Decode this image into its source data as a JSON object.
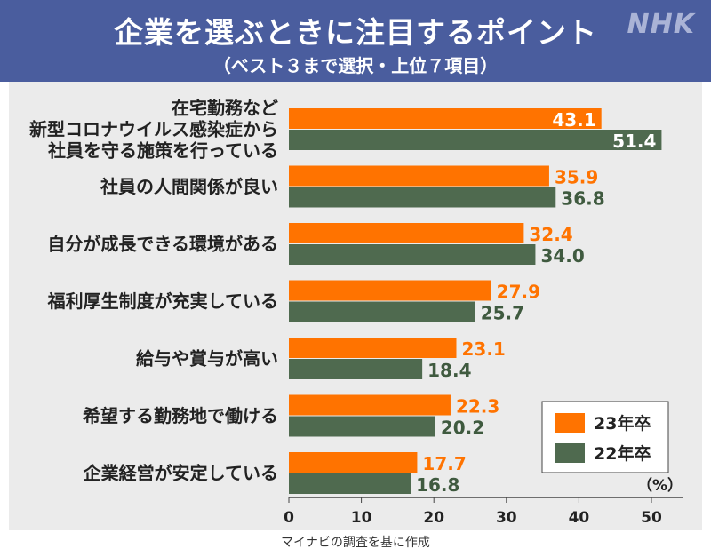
{
  "header": {
    "title": "企業を選ぶときに注目するポイント",
    "subtitle": "（ベスト３まで選択・上位７項目）",
    "logo": "NHK"
  },
  "source": "マイナビの調査を基に作成",
  "colors": {
    "header_bg": "#4a5d9e",
    "series_23": "#ff7300",
    "series_22": "#4f6a4f"
  },
  "chart_data": {
    "type": "bar",
    "orientation": "horizontal",
    "categories": [
      [
        "在宅勤務など",
        "新型コロナウイルス感染症から",
        "社員を守る施策を行っている"
      ],
      [
        "社員の人間関係が良い"
      ],
      [
        "自分が成長できる環境がある"
      ],
      [
        "福利厚生制度が充実している"
      ],
      [
        "給与や賞与が高い"
      ],
      [
        "希望する勤務地で働ける"
      ],
      [
        "企業経営が安定している"
      ]
    ],
    "series": [
      {
        "name": "23年卒",
        "color": "#ff7300",
        "values": [
          43.1,
          35.9,
          32.4,
          27.9,
          23.1,
          22.3,
          17.7
        ]
      },
      {
        "name": "22年卒",
        "color": "#4f6a4f",
        "values": [
          51.4,
          36.8,
          34.0,
          25.7,
          18.4,
          20.2,
          16.8
        ]
      }
    ],
    "xlim": [
      0,
      55
    ],
    "xticks": [
      0,
      10,
      20,
      30,
      40,
      50
    ],
    "unit": "（%）",
    "legend_position": "bottom-right"
  }
}
